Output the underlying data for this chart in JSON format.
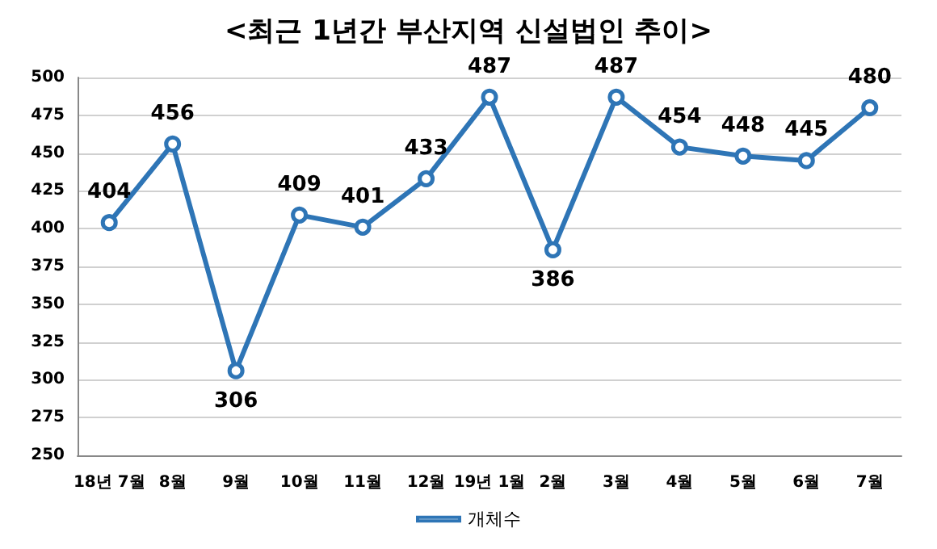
{
  "chart_data": {
    "type": "line",
    "title": "<최근 1년간 부산지역 신설법인 추이>",
    "categories": [
      "18년 7월",
      "8월",
      "9월",
      "10월",
      "11월",
      "12월",
      "19년 1월",
      "2월",
      "3월",
      "4월",
      "5월",
      "6월",
      "7월"
    ],
    "series": [
      {
        "name": "개체수",
        "color": "#2e75b6",
        "values": [
          404,
          456,
          306,
          409,
          401,
          433,
          487,
          386,
          487,
          454,
          448,
          445,
          480
        ]
      }
    ],
    "ylim": [
      250,
      500
    ],
    "yticks": [
      250,
      275,
      300,
      325,
      350,
      375,
      400,
      425,
      450,
      475,
      500
    ],
    "grid": "y",
    "legend": "bottom",
    "marker": "circle",
    "line_style": "solid",
    "data_labels": true
  }
}
